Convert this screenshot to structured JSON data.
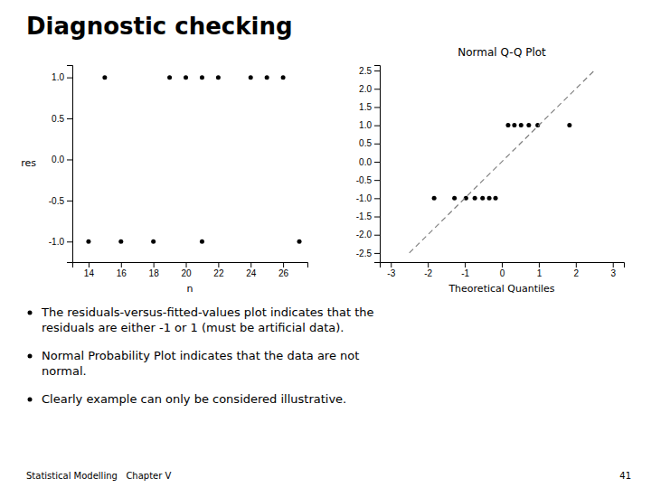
{
  "title": "Diagnostic checking",
  "annotations": [
    "The residuals-versus-fitted-values plot indicates that the\nresiduals are either -1 or 1 (must be artificial data).",
    "Normal Probability Plot indicates that the data are not\nnormal.",
    "Clearly example can only be considered illustrative."
  ],
  "footer": [
    "Statistical Modelling   Chapter V",
    "41"
  ],
  "chart_data": [
    {
      "type": "scatter",
      "xlabel": "n",
      "ylabel": "res",
      "xlim": [
        13,
        27.5
      ],
      "ylim": [
        -1.25,
        1.15
      ],
      "xticks": [
        14,
        16,
        18,
        20,
        22,
        24,
        26
      ],
      "yticks": [
        {
          "value": -1.0,
          "label": "-1.0"
        },
        -0.5,
        {
          "value": 0.0,
          "label": "0.0"
        },
        0.5,
        {
          "value": 1.0,
          "label": "1.0"
        }
      ],
      "series": [
        {
          "type": "scatter",
          "color": "black",
          "x": [
            14,
            15,
            16,
            18,
            19,
            20,
            21,
            21,
            22,
            24,
            25,
            26,
            27
          ],
          "values": [
            -1,
            1,
            -1,
            -1,
            1,
            1,
            1,
            -1,
            1,
            1,
            1,
            1,
            -1
          ]
        }
      ]
    },
    {
      "type": "scatter",
      "title": "Normal Q-Q Plot",
      "xlabel": "Theoretical Quantiles",
      "xlim": [
        -3.3,
        3.3
      ],
      "ylim": [
        -2.75,
        2.65
      ],
      "xticks": [
        -3,
        -2,
        -1,
        0,
        1,
        2,
        3
      ],
      "yticks": [
        -2.5,
        {
          "value": -2.0,
          "label": "-2.0"
        },
        -1.5,
        {
          "value": -1.0,
          "label": "-1.0"
        },
        -0.5,
        {
          "value": 0.0,
          "label": "0.0"
        },
        0.5,
        {
          "value": 1.0,
          "label": "1.0"
        },
        1.5,
        {
          "value": 2.0,
          "label": "2.0"
        },
        2.5
      ],
      "series": [
        {
          "type": "scatter",
          "color": "black",
          "x": [
            -1.83,
            -1.28,
            -0.97,
            -0.73,
            -0.52,
            -0.34,
            -0.17,
            0.17,
            0.34,
            0.52,
            0.73,
            0.97,
            1.83
          ],
          "values": [
            -1.0,
            -1.0,
            -1.0,
            -1.0,
            -1.0,
            -1.0,
            -1.0,
            1.0,
            1.0,
            1.0,
            1.0,
            1.0,
            1.0
          ]
        },
        {
          "type": "line",
          "color": "gray",
          "line_style": "dashed",
          "x": [
            -2.5,
            2.5
          ],
          "values": [
            -2.5,
            2.5
          ]
        }
      ]
    }
  ]
}
